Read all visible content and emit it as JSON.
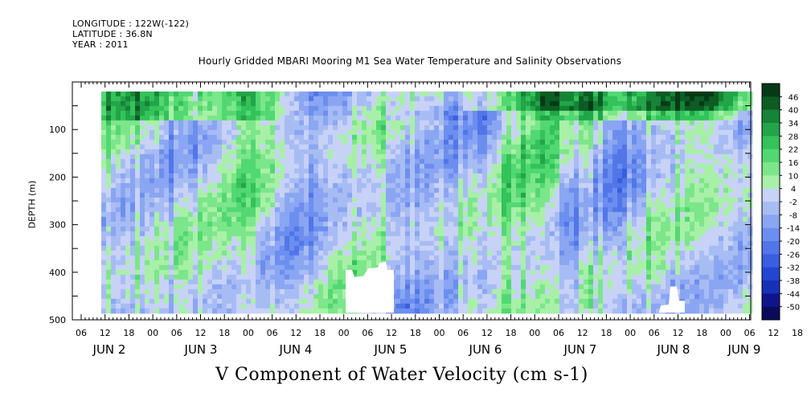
{
  "header": {
    "longitude": "LONGITUDE : 122W(-122)",
    "latitude": "LATITUDE : 36.8N",
    "year": "YEAR : 2011"
  },
  "chart_data": {
    "type": "heatmap",
    "title": "Hourly Gridded MBARI Mooring M1 Sea Water Temperature and Salinity Observations",
    "xlabel": "V Component of Water Velocity (cm s-1)",
    "ylabel": "DEPTH (m)",
    "y_axis": {
      "inverted": true,
      "ylim": [
        0,
        500
      ],
      "ticks": [
        100,
        200,
        300,
        400,
        500
      ],
      "tick_labels": [
        "100",
        "200",
        "300",
        "400",
        "500"
      ]
    },
    "x_axis": {
      "hour_tick_labels": [
        "06",
        "12",
        "18",
        "00",
        "06",
        "12",
        "18",
        "00",
        "06",
        "12",
        "18",
        "00",
        "06",
        "12",
        "18",
        "00",
        "06",
        "12",
        "18",
        "00",
        "06",
        "12",
        "18",
        "00",
        "06",
        "12",
        "18",
        "00",
        "06",
        "12",
        "18",
        "00",
        "06"
      ],
      "day_labels": [
        "JUN  2",
        "JUN  3",
        "JUN  4",
        "JUN  5",
        "JUN  6",
        "JUN  7",
        "JUN  8",
        "JUN  9"
      ]
    },
    "colorbar": {
      "levels": [
        -50,
        -44,
        -38,
        -32,
        -26,
        -20,
        -14,
        -8,
        -2,
        4,
        10,
        16,
        22,
        28,
        34,
        40,
        46
      ],
      "labels": [
        "46",
        "40",
        "34",
        "28",
        "22",
        "16",
        "10",
        "4",
        "-2",
        "-8",
        "-14",
        "-20",
        "-26",
        "-32",
        "-38",
        "-44",
        "-50"
      ],
      "colors": [
        "#0a0a5a",
        "#10148c",
        "#1730b8",
        "#2346d2",
        "#3a5ee0",
        "#5276e8",
        "#6c8eef",
        "#8aa6f2",
        "#a8bcf4",
        "#c8d2f7",
        "#a8f0a8",
        "#7ce68a",
        "#52d872",
        "#34c25a",
        "#22a448",
        "#158436",
        "#0c5c24",
        "#063a16"
      ],
      "note": "green = positive (northward), blue = negative (southward); field estimated from image"
    },
    "data_extent_depth_m": [
      20,
      485
    ]
  }
}
